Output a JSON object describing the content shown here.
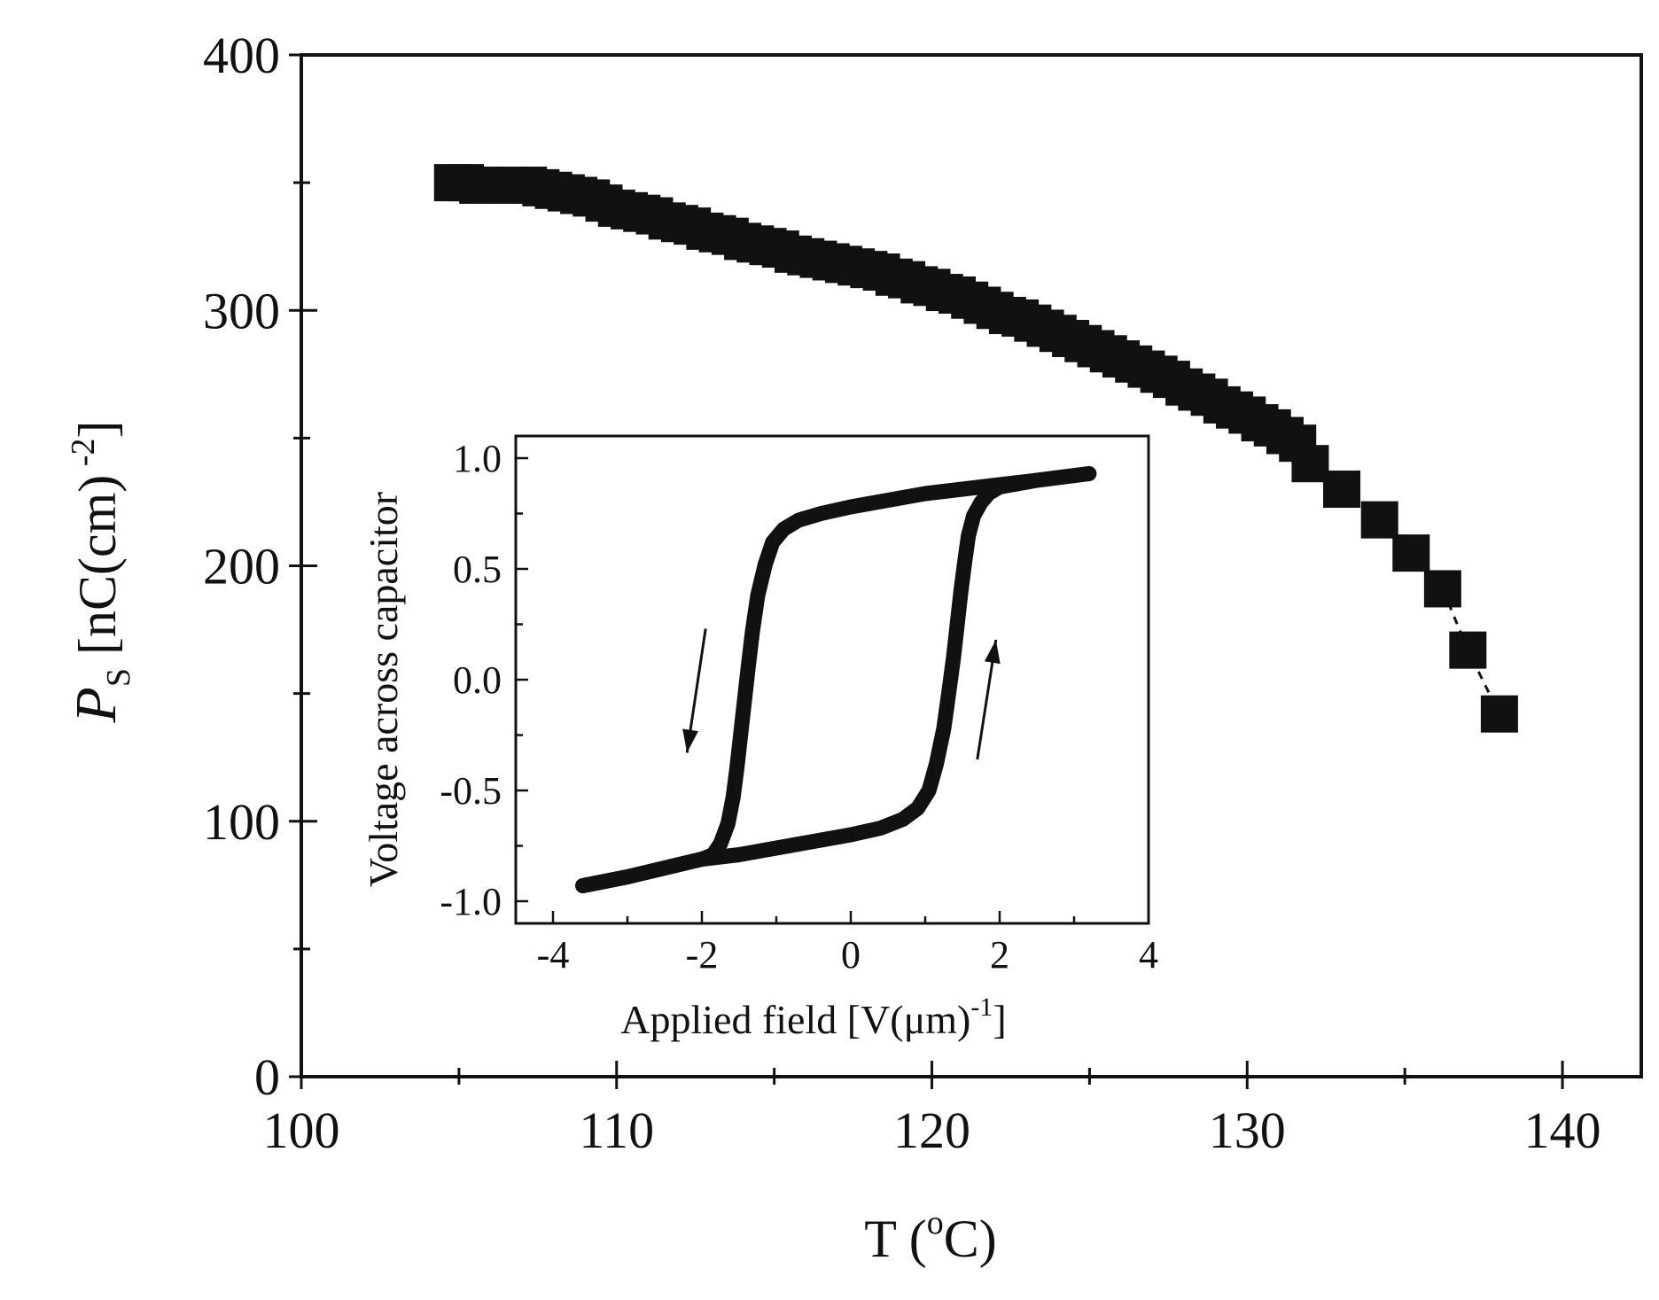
{
  "chart_data": [
    {
      "type": "scatter",
      "name": "main",
      "title": "",
      "xlabel": {
        "base": "T (",
        "sup": "o",
        "tail": "C)"
      },
      "ylabel": {
        "italic": "P",
        "sub": "S",
        "mid": " [nC(cm)",
        "sup": " -2",
        "tail": "]"
      },
      "xlim": [
        100,
        142.5
      ],
      "ylim": [
        0,
        400
      ],
      "xticks": [
        100,
        110,
        120,
        130,
        140
      ],
      "xtick_labels": [
        "100",
        "110",
        "120",
        "130",
        "140"
      ],
      "xminor": [
        105,
        115,
        125,
        135
      ],
      "yticks": [
        0,
        100,
        200,
        300,
        400
      ],
      "ytick_labels": [
        "0",
        "100",
        "200",
        "300",
        "400"
      ],
      "yminor": [
        50,
        150,
        250,
        350
      ],
      "grid": false,
      "marker": "square",
      "color": "#111111",
      "series": [
        {
          "name": "Ps",
          "x": [
            104.8,
            105.2,
            105.6,
            106.0,
            106.4,
            106.8,
            107.2,
            107.6,
            108.0,
            108.4,
            108.8,
            109.2,
            109.6,
            110.0,
            110.4,
            110.8,
            111.2,
            111.6,
            112.0,
            112.4,
            112.8,
            113.2,
            113.6,
            114.0,
            114.4,
            114.8,
            115.2,
            115.6,
            116.0,
            116.4,
            116.8,
            117.2,
            117.6,
            118.0,
            118.4,
            118.8,
            119.2,
            119.6,
            120.0,
            120.4,
            120.8,
            121.2,
            121.6,
            122.0,
            122.4,
            122.8,
            123.2,
            123.6,
            124.0,
            124.4,
            124.8,
            125.2,
            125.6,
            126.0,
            126.4,
            126.8,
            127.2,
            127.6,
            128.0,
            128.4,
            128.8,
            129.2,
            129.6,
            130.0,
            130.4,
            130.8,
            131.2,
            131.6,
            132.0,
            133.0,
            134.2,
            135.2,
            136.2,
            137.0,
            138.0
          ],
          "y": [
            350,
            350,
            349,
            349,
            349,
            349,
            349,
            348,
            347,
            346,
            345,
            344,
            342,
            340,
            339,
            338,
            337,
            335,
            334,
            333,
            331,
            330,
            329,
            327,
            326,
            325,
            324,
            322,
            321,
            320,
            319,
            318,
            317,
            316,
            315,
            313,
            312,
            310,
            309,
            307,
            306,
            304,
            302,
            300,
            298,
            297,
            295,
            293,
            291,
            289,
            287,
            285,
            283,
            281,
            279,
            277,
            275,
            273,
            270,
            268,
            266,
            263,
            261,
            259,
            256,
            254,
            251,
            248,
            240,
            230,
            218,
            205,
            191,
            167,
            142
          ]
        }
      ],
      "dashed_tail": {
        "x": [
          136.2,
          137.0,
          138.0
        ],
        "y": [
          191,
          167,
          142
        ]
      }
    },
    {
      "type": "line",
      "name": "inset",
      "title": "",
      "xlabel": {
        "base": "Applied field [V(μm)",
        "sup": "-1",
        "tail": "]"
      },
      "ylabel": "Voltage across capacitor",
      "xlim": [
        -4.5,
        4
      ],
      "ylim": [
        -1.1,
        1.1
      ],
      "xticks": [
        -4,
        -2,
        0,
        2,
        4
      ],
      "xtick_labels": [
        "-4",
        "-2",
        "0",
        "2",
        "4"
      ],
      "xminor": [
        -3,
        -1,
        1,
        3
      ],
      "yticks": [
        -1.0,
        -0.5,
        0.0,
        0.5,
        1.0
      ],
      "ytick_labels": [
        "-1.0",
        "-0.5",
        "0.0",
        "0.5",
        "1.0"
      ],
      "yminor": [
        -0.75,
        -0.25,
        0.25,
        0.75
      ],
      "grid": false,
      "color": "#111111",
      "series": [
        {
          "name": "descending branch (upper)",
          "x": [
            3.2,
            2.5,
            2.0,
            1.5,
            1.0,
            0.5,
            0.0,
            -0.4,
            -0.7,
            -0.9,
            -1.05,
            -1.15,
            -1.25,
            -1.32,
            -1.38,
            -1.43,
            -1.48,
            -1.53,
            -1.58,
            -1.65,
            -1.75,
            -1.85,
            -2.0,
            -2.5,
            -3.0,
            -3.6
          ],
          "y": [
            0.93,
            0.9,
            0.88,
            0.86,
            0.84,
            0.81,
            0.78,
            0.75,
            0.72,
            0.68,
            0.62,
            0.52,
            0.38,
            0.22,
            0.05,
            -0.1,
            -0.25,
            -0.4,
            -0.53,
            -0.65,
            -0.74,
            -0.79,
            -0.81,
            -0.85,
            -0.89,
            -0.93
          ]
        },
        {
          "name": "ascending branch (lower)",
          "x": [
            -3.6,
            -3.0,
            -2.5,
            -2.0,
            -1.5,
            -1.0,
            -0.5,
            0.0,
            0.4,
            0.7,
            0.9,
            1.05,
            1.15,
            1.25,
            1.32,
            1.38,
            1.43,
            1.48,
            1.53,
            1.58,
            1.65,
            1.75,
            1.85,
            2.0,
            2.5,
            3.2
          ],
          "y": [
            -0.93,
            -0.89,
            -0.85,
            -0.81,
            -0.79,
            -0.76,
            -0.73,
            -0.7,
            -0.67,
            -0.63,
            -0.58,
            -0.5,
            -0.38,
            -0.22,
            -0.05,
            0.1,
            0.25,
            0.4,
            0.53,
            0.65,
            0.74,
            0.8,
            0.84,
            0.87,
            0.9,
            0.93
          ]
        }
      ],
      "arrows": [
        {
          "direction": "down",
          "from": [
            -1.95,
            0.23
          ],
          "to": [
            -2.2,
            -0.33
          ]
        },
        {
          "direction": "up",
          "from": [
            1.7,
            -0.36
          ],
          "to": [
            1.95,
            0.18
          ]
        }
      ]
    }
  ]
}
